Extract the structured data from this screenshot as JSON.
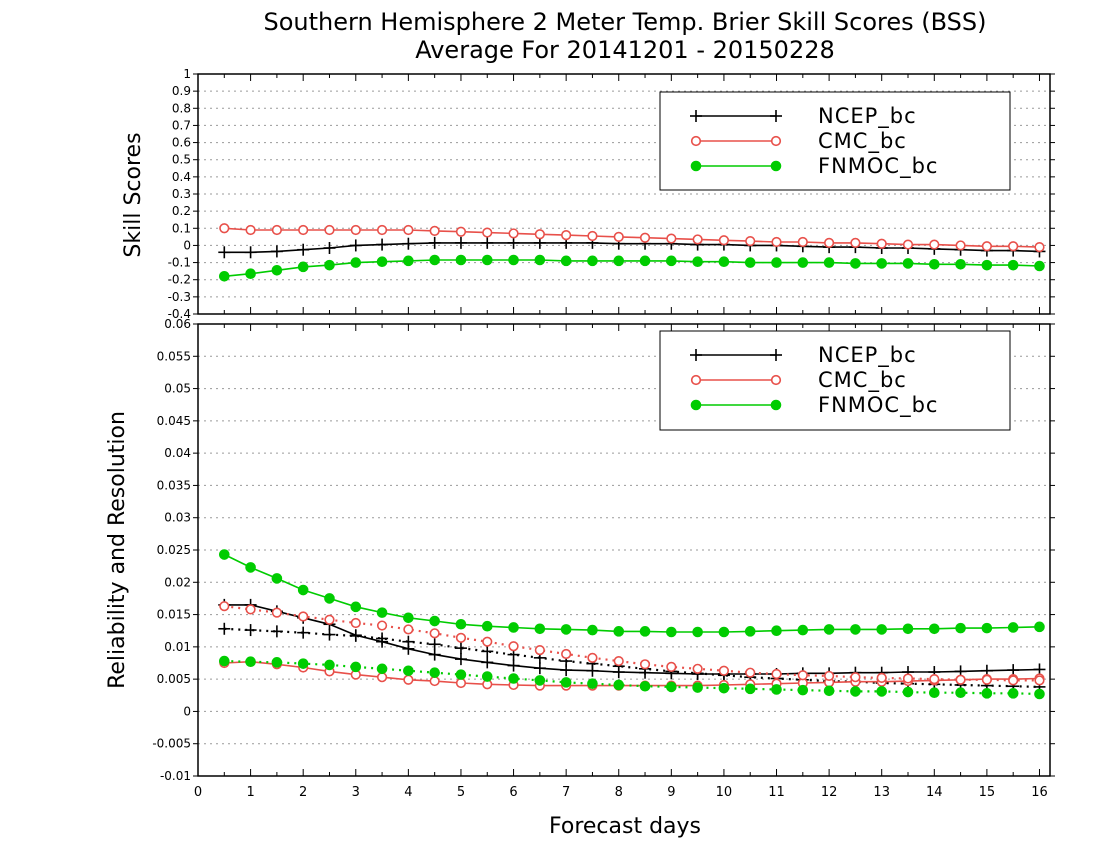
{
  "title_line1": "Southern Hemisphere 2 Meter Temp. Brier Skill Scores (BSS)",
  "title_line2": "Average For 20141201 - 20150228",
  "xlabel": "Forecast days",
  "colors": {
    "ncep": "#000000",
    "cmc": "#e8504a",
    "fnmoc": "#00cc00",
    "grid": "#9a9a9a"
  },
  "chart_data": [
    {
      "type": "line",
      "panel": "top",
      "ylabel": "Skill Scores",
      "xlim": [
        0,
        16.2
      ],
      "ylim": [
        -0.4,
        1.0
      ],
      "xticks": [
        0,
        1,
        2,
        3,
        4,
        5,
        6,
        7,
        8,
        9,
        10,
        11,
        12,
        13,
        14,
        15,
        16
      ],
      "yticks": [
        -0.4,
        -0.3,
        -0.2,
        -0.1,
        0,
        0.1,
        0.2,
        0.3,
        0.4,
        0.5,
        0.6,
        0.7,
        0.8,
        0.9,
        1
      ],
      "grid": true,
      "legend_position": "top-right",
      "x": [
        0.5,
        1,
        1.5,
        2,
        2.5,
        3,
        3.5,
        4,
        4.5,
        5,
        5.5,
        6,
        6.5,
        7,
        7.5,
        8,
        8.5,
        9,
        9.5,
        10,
        10.5,
        11,
        11.5,
        12,
        12.5,
        13,
        13.5,
        14,
        14.5,
        15,
        15.5,
        16
      ],
      "series": [
        {
          "name": "NCEP_bc",
          "key": "ncep",
          "marker": "plus",
          "style": "solid",
          "values": [
            -0.04,
            -0.04,
            -0.035,
            -0.025,
            -0.015,
            0,
            0.005,
            0.01,
            0.015,
            0.015,
            0.015,
            0.015,
            0.015,
            0.015,
            0.015,
            0.01,
            0.01,
            0.01,
            0.005,
            0.005,
            0,
            0,
            -0.005,
            -0.01,
            -0.01,
            -0.015,
            -0.015,
            -0.02,
            -0.025,
            -0.03,
            -0.03,
            -0.035
          ]
        },
        {
          "name": "CMC_bc",
          "key": "cmc",
          "marker": "circle-open",
          "style": "solid",
          "values": [
            0.1,
            0.09,
            0.09,
            0.09,
            0.09,
            0.09,
            0.09,
            0.09,
            0.085,
            0.08,
            0.075,
            0.07,
            0.065,
            0.06,
            0.055,
            0.05,
            0.045,
            0.04,
            0.035,
            0.03,
            0.025,
            0.02,
            0.02,
            0.015,
            0.015,
            0.01,
            0.005,
            0.005,
            0,
            -0.005,
            -0.005,
            -0.01
          ]
        },
        {
          "name": "FNMOC_bc",
          "key": "fnmoc",
          "marker": "circle-filled",
          "style": "solid",
          "values": [
            -0.18,
            -0.165,
            -0.145,
            -0.125,
            -0.115,
            -0.1,
            -0.095,
            -0.09,
            -0.085,
            -0.085,
            -0.085,
            -0.085,
            -0.085,
            -0.09,
            -0.09,
            -0.09,
            -0.09,
            -0.09,
            -0.095,
            -0.095,
            -0.1,
            -0.1,
            -0.1,
            -0.1,
            -0.105,
            -0.105,
            -0.105,
            -0.11,
            -0.11,
            -0.115,
            -0.115,
            -0.12
          ]
        }
      ]
    },
    {
      "type": "line",
      "panel": "bottom",
      "ylabel": "Reliability and Resolution",
      "xlim": [
        0,
        16.2
      ],
      "ylim": [
        -0.01,
        0.06
      ],
      "xticks": [
        0,
        1,
        2,
        3,
        4,
        5,
        6,
        7,
        8,
        9,
        10,
        11,
        12,
        13,
        14,
        15,
        16
      ],
      "yticks": [
        -0.01,
        -0.005,
        0,
        0.005,
        0.01,
        0.015,
        0.02,
        0.025,
        0.03,
        0.035,
        0.04,
        0.045,
        0.05,
        0.055,
        0.06
      ],
      "grid": true,
      "legend_position": "top-right",
      "x": [
        0.5,
        1,
        1.5,
        2,
        2.5,
        3,
        3.5,
        4,
        4.5,
        5,
        5.5,
        6,
        6.5,
        7,
        7.5,
        8,
        8.5,
        9,
        9.5,
        10,
        10.5,
        11,
        11.5,
        12,
        12.5,
        13,
        13.5,
        14,
        14.5,
        15,
        15.5,
        16
      ],
      "series": [
        {
          "name": "NCEP_bc",
          "key": "ncep",
          "marker": "plus",
          "style": "solid",
          "legend": true,
          "values": [
            0.0165,
            0.0165,
            0.0155,
            0.0145,
            0.0135,
            0.0118,
            0.0108,
            0.0097,
            0.0088,
            0.0081,
            0.0076,
            0.0071,
            0.0067,
            0.0064,
            0.0063,
            0.0061,
            0.006,
            0.0059,
            0.0058,
            0.0058,
            0.0058,
            0.0058,
            0.0059,
            0.0059,
            0.006,
            0.006,
            0.0061,
            0.0061,
            0.0062,
            0.0063,
            0.0064,
            0.0065
          ]
        },
        {
          "name": "NCEP_bc",
          "key": "ncep",
          "marker": "plus",
          "style": "dotted",
          "legend": false,
          "values": [
            0.0128,
            0.0126,
            0.0124,
            0.0122,
            0.0119,
            0.0117,
            0.0113,
            0.0108,
            0.0104,
            0.0098,
            0.0093,
            0.0088,
            0.0083,
            0.0078,
            0.0074,
            0.007,
            0.0066,
            0.0062,
            0.0059,
            0.0056,
            0.0053,
            0.0051,
            0.0049,
            0.0047,
            0.0046,
            0.0044,
            0.0043,
            0.0042,
            0.0041,
            0.004,
            0.0039,
            0.0038
          ]
        },
        {
          "name": "CMC_bc",
          "key": "cmc",
          "marker": "circle-open",
          "style": "solid",
          "legend": true,
          "values": [
            0.0075,
            0.0077,
            0.0073,
            0.0068,
            0.0062,
            0.0057,
            0.0053,
            0.0049,
            0.0047,
            0.0044,
            0.0042,
            0.0041,
            0.004,
            0.004,
            0.004,
            0.004,
            0.004,
            0.004,
            0.004,
            0.0041,
            0.0042,
            0.0043,
            0.0044,
            0.0045,
            0.0046,
            0.0046,
            0.0047,
            0.0048,
            0.0049,
            0.005,
            0.005,
            0.0051
          ]
        },
        {
          "name": "CMC_bc",
          "key": "cmc",
          "marker": "circle-open",
          "style": "dotted",
          "legend": false,
          "values": [
            0.0163,
            0.0158,
            0.0153,
            0.0147,
            0.0142,
            0.0137,
            0.0133,
            0.0127,
            0.0121,
            0.0114,
            0.0108,
            0.0101,
            0.0095,
            0.0089,
            0.0083,
            0.0078,
            0.0073,
            0.0069,
            0.0066,
            0.0063,
            0.006,
            0.0058,
            0.0056,
            0.0055,
            0.0053,
            0.0052,
            0.0051,
            0.005,
            0.0049,
            0.0049,
            0.0048,
            0.0048
          ]
        },
        {
          "name": "FNMOC_bc",
          "key": "fnmoc",
          "marker": "circle-filled",
          "style": "solid",
          "legend": true,
          "values": [
            0.0243,
            0.0223,
            0.0206,
            0.0188,
            0.0175,
            0.0162,
            0.0153,
            0.0145,
            0.014,
            0.0135,
            0.0132,
            0.013,
            0.0128,
            0.0127,
            0.0126,
            0.0124,
            0.0124,
            0.0123,
            0.0123,
            0.0123,
            0.0124,
            0.0125,
            0.0126,
            0.0127,
            0.0127,
            0.0127,
            0.0128,
            0.0128,
            0.0129,
            0.0129,
            0.013,
            0.0131
          ]
        },
        {
          "name": "FNMOC_bc",
          "key": "fnmoc",
          "marker": "circle-filled",
          "style": "dotted",
          "legend": false,
          "values": [
            0.0078,
            0.0077,
            0.0076,
            0.0074,
            0.0072,
            0.0069,
            0.0066,
            0.0063,
            0.006,
            0.0057,
            0.0054,
            0.0051,
            0.0048,
            0.0045,
            0.0043,
            0.0041,
            0.0039,
            0.0038,
            0.0037,
            0.0036,
            0.0035,
            0.0034,
            0.0033,
            0.0032,
            0.0031,
            0.0031,
            0.003,
            0.0029,
            0.0029,
            0.0028,
            0.0028,
            0.0027
          ]
        }
      ]
    }
  ]
}
